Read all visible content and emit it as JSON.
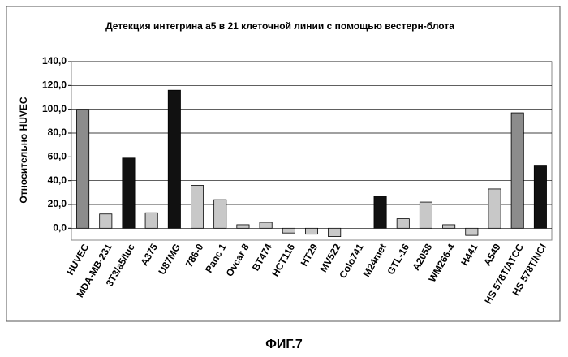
{
  "chart_data": {
    "type": "bar",
    "title": "Детекция интегрина а5 в 21 клеточной линии с помощью вестерн-блота",
    "ylabel": "Относительно HUVEC",
    "caption": "ФИГ.7",
    "categories": [
      "HUVEC",
      "MDA-MB-231",
      "3T3/a5/luc",
      "A375",
      "U87MG",
      "786-0",
      "Panc 1",
      "Ovcar 8",
      "BT474",
      "HCT116",
      "HT29",
      "MV522",
      "Colo741",
      "M24met",
      "GTL-16",
      "A2058",
      "WM266-4",
      "H441",
      "A549",
      "HS 578T/ATCC",
      "HS 578T/NCI"
    ],
    "values": [
      100,
      12,
      59,
      13,
      116,
      36,
      24,
      3,
      5,
      -4,
      -5,
      -7,
      0,
      27,
      8,
      22,
      3,
      -6,
      33,
      97,
      53
    ],
    "colors": [
      "#8c8c8c",
      "#c8c8c8",
      "#111111",
      "#c8c8c8",
      "#111111",
      "#c8c8c8",
      "#c8c8c8",
      "#c8c8c8",
      "#c8c8c8",
      "#c8c8c8",
      "#c8c8c8",
      "#c8c8c8",
      "#c8c8c8",
      "#111111",
      "#c8c8c8",
      "#c8c8c8",
      "#c8c8c8",
      "#c8c8c8",
      "#c8c8c8",
      "#8c8c8c",
      "#111111"
    ],
    "ylim": [
      -10,
      140
    ],
    "yticks": [
      {
        "value": 0,
        "label": "0,0"
      },
      {
        "value": 20,
        "label": "20,0"
      },
      {
        "value": 40,
        "label": "40,0"
      },
      {
        "value": 60,
        "label": "60,0"
      },
      {
        "value": 80,
        "label": "80,0"
      },
      {
        "value": 100,
        "label": "100,0"
      },
      {
        "value": 120,
        "label": "120,0"
      },
      {
        "value": 140,
        "label": "140,0"
      }
    ],
    "grid": true
  }
}
